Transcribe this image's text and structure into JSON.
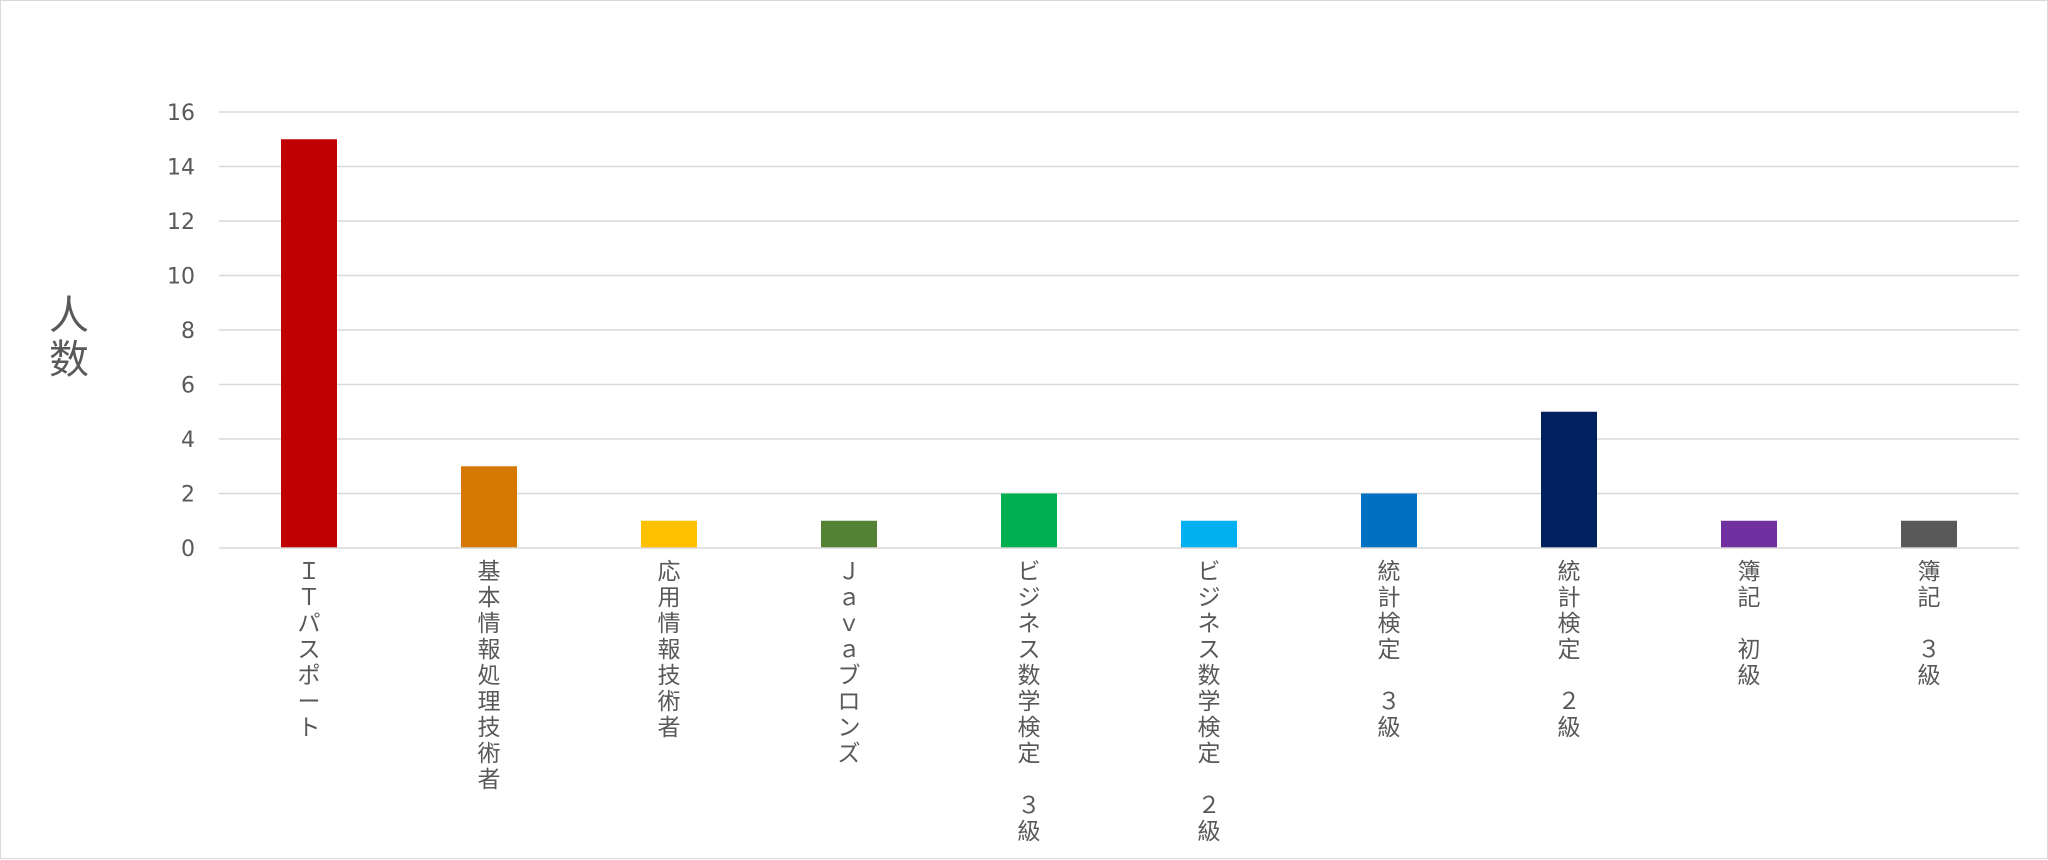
{
  "chart_data": {
    "type": "bar",
    "title": "",
    "xlabel": "",
    "ylabel": "人数",
    "ylim": [
      0,
      16
    ],
    "yticks": [
      0,
      2,
      4,
      6,
      8,
      10,
      12,
      14,
      16
    ],
    "grid": true,
    "legend": "none",
    "categories": [
      "ＩＴパスポート",
      "基本情報処理技術者",
      "応用情報技術者",
      "Ｊａｖａブロンズ",
      "ビジネス数学検定 ３級",
      "ビジネス数学検定 ２級",
      "統計検定 ３級",
      "統計検定 ２級",
      "簿記 初級",
      "簿記 ３級"
    ],
    "values": [
      15,
      3,
      1,
      1,
      2,
      1,
      2,
      5,
      1,
      1
    ],
    "colors": [
      "#c00000",
      "#d47800",
      "#ffc000",
      "#548235",
      "#00b050",
      "#00b0f0",
      "#0070c0",
      "#002060",
      "#7030a0",
      "#595959"
    ],
    "colors_meta": {
      "gridline": "#d9d9d9",
      "axis_line": "#d9d9d9",
      "text": "#595959"
    }
  }
}
